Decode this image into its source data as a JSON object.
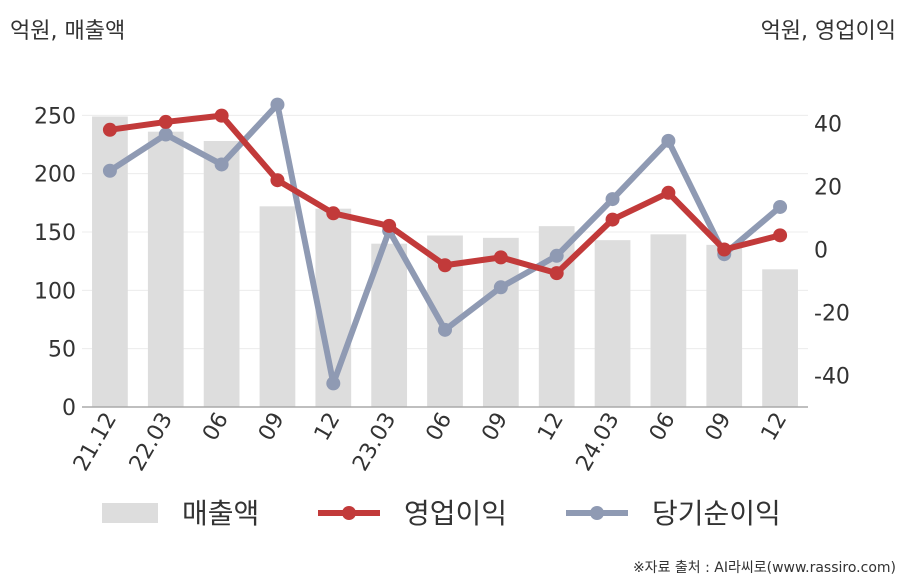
{
  "chart_data": {
    "type": "bar",
    "left_axis_unit": "억원, 매출액",
    "right_axis_unit": "억원, 영업이익",
    "categories": [
      "21.12",
      "22.03",
      "06",
      "09",
      "12",
      "23.03",
      "06",
      "09",
      "12",
      "24.03",
      "06",
      "09",
      "12"
    ],
    "left_ylim": [
      0,
      270
    ],
    "left_ticks": [
      0,
      50,
      100,
      150,
      200,
      250
    ],
    "right_ylim": [
      -50,
      50
    ],
    "right_ticks": [
      -40,
      -20,
      0,
      20,
      40
    ],
    "grid": true,
    "legend_position": "bottom",
    "series": [
      {
        "name": "매출액",
        "type": "bar",
        "axis": "left",
        "color": "#dddddd",
        "values": [
          249,
          236,
          228,
          172,
          170,
          140,
          147,
          145,
          155,
          143,
          148,
          139,
          118
        ]
      },
      {
        "name": "영업이익",
        "type": "line",
        "axis": "right",
        "color": "#c23a3a",
        "values": [
          38,
          40.5,
          42.5,
          22,
          11.5,
          7.5,
          -5,
          -2.5,
          -7.5,
          9.5,
          18,
          0,
          4.5
        ]
      },
      {
        "name": "당기순이익",
        "type": "line",
        "axis": "right",
        "color": "#8f9ab3",
        "values": [
          25,
          36.5,
          27,
          46,
          -42.5,
          6,
          -25.5,
          -12,
          -2,
          16,
          34.5,
          -1.5,
          13.5
        ]
      }
    ]
  },
  "source": "※자료 출처 : AI라씨로(www.rassiro.com)"
}
